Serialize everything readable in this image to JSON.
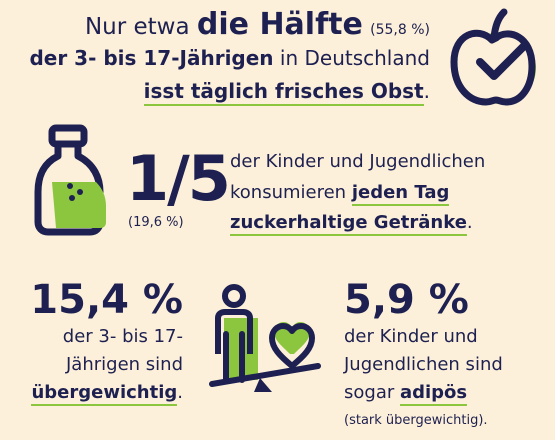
{
  "colors": {
    "background": "#fdf0da",
    "text": "#1d2050",
    "accent": "#8cc63f"
  },
  "fruit": {
    "icon": "apple-check-icon",
    "line1_prefix": "Nur etwa ",
    "line1_emphasis": "die Hälfte",
    "line1_percent": "(55,8 %)",
    "line2_emphasis": "der 3- bis 17-Jährigen",
    "line2_suffix": " in Deutschland",
    "line3_emphasis": "isst täglich frisches Obst",
    "line3_suffix": "."
  },
  "drinks": {
    "icon": "bottle-icon",
    "fraction": "1/5",
    "percent": "(19,6 %)",
    "line1": "der Kinder und Jugendlichen",
    "line2_prefix": "konsumieren ",
    "line2_emphasis": "jeden Tag",
    "line3_emphasis": "zuckerhaltige Getränke",
    "line3_suffix": "."
  },
  "overweight": {
    "percent": "15,4 %",
    "line1": "der 3- bis 17-",
    "line2": "Jährigen sind",
    "line3_emphasis": "übergewichtig",
    "line3_suffix": "."
  },
  "scale_icon": "person-heart-scale-icon",
  "obese": {
    "percent": "5,9 %",
    "line1": "der Kinder und",
    "line2": "Jugendlichen sind",
    "line3_prefix": "sogar ",
    "line3_emphasis": "adipös",
    "line4": "(stark übergewichtig)."
  }
}
